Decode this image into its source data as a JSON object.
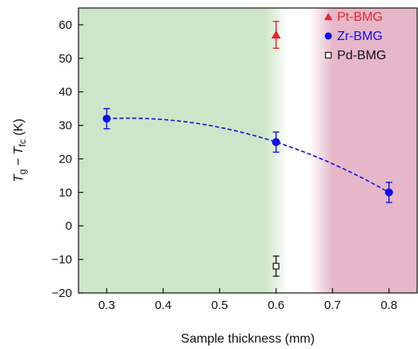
{
  "chart_data": {
    "type": "scatter",
    "xlabel": "Sample thickness (mm)",
    "ylabel": {
      "T1": "T",
      "sub1": "g",
      "dash": " − ",
      "T2": "T",
      "sub2": "fc",
      "unit": " (K)"
    },
    "xlim": [
      0.25,
      0.85
    ],
    "ylim": [
      -20,
      65
    ],
    "xticks": [
      "0.3",
      "0.4",
      "0.5",
      "0.6",
      "0.7",
      "0.8"
    ],
    "yticks": [
      "−20",
      "−10",
      "0",
      "10",
      "20",
      "30",
      "40",
      "50",
      "60"
    ],
    "grid": false,
    "legend_position": "top-right",
    "background_regions": [
      {
        "from": 0.25,
        "to": 0.58,
        "fade_to": 0.62,
        "color": "#cde5c8"
      },
      {
        "from": 0.7,
        "to": 0.85,
        "fade_from": 0.66,
        "color": "#e6b7c9"
      }
    ],
    "series": [
      {
        "name": "Pt-BMG",
        "marker": "triangle",
        "color": "#e8262a",
        "points": [
          {
            "x": 0.6,
            "y": 57,
            "err": 4
          }
        ]
      },
      {
        "name": "Zr-BMG",
        "marker": "circle",
        "color": "#1010e8",
        "fit_line": "dashed",
        "points": [
          {
            "x": 0.3,
            "y": 32,
            "err": 3
          },
          {
            "x": 0.6,
            "y": 25,
            "err": 3
          },
          {
            "x": 0.8,
            "y": 10,
            "err": 3
          }
        ]
      },
      {
        "name": "Pd-BMG",
        "marker": "open-square",
        "color": "#222222",
        "points": [
          {
            "x": 0.6,
            "y": -12,
            "err": 3
          }
        ]
      }
    ]
  }
}
